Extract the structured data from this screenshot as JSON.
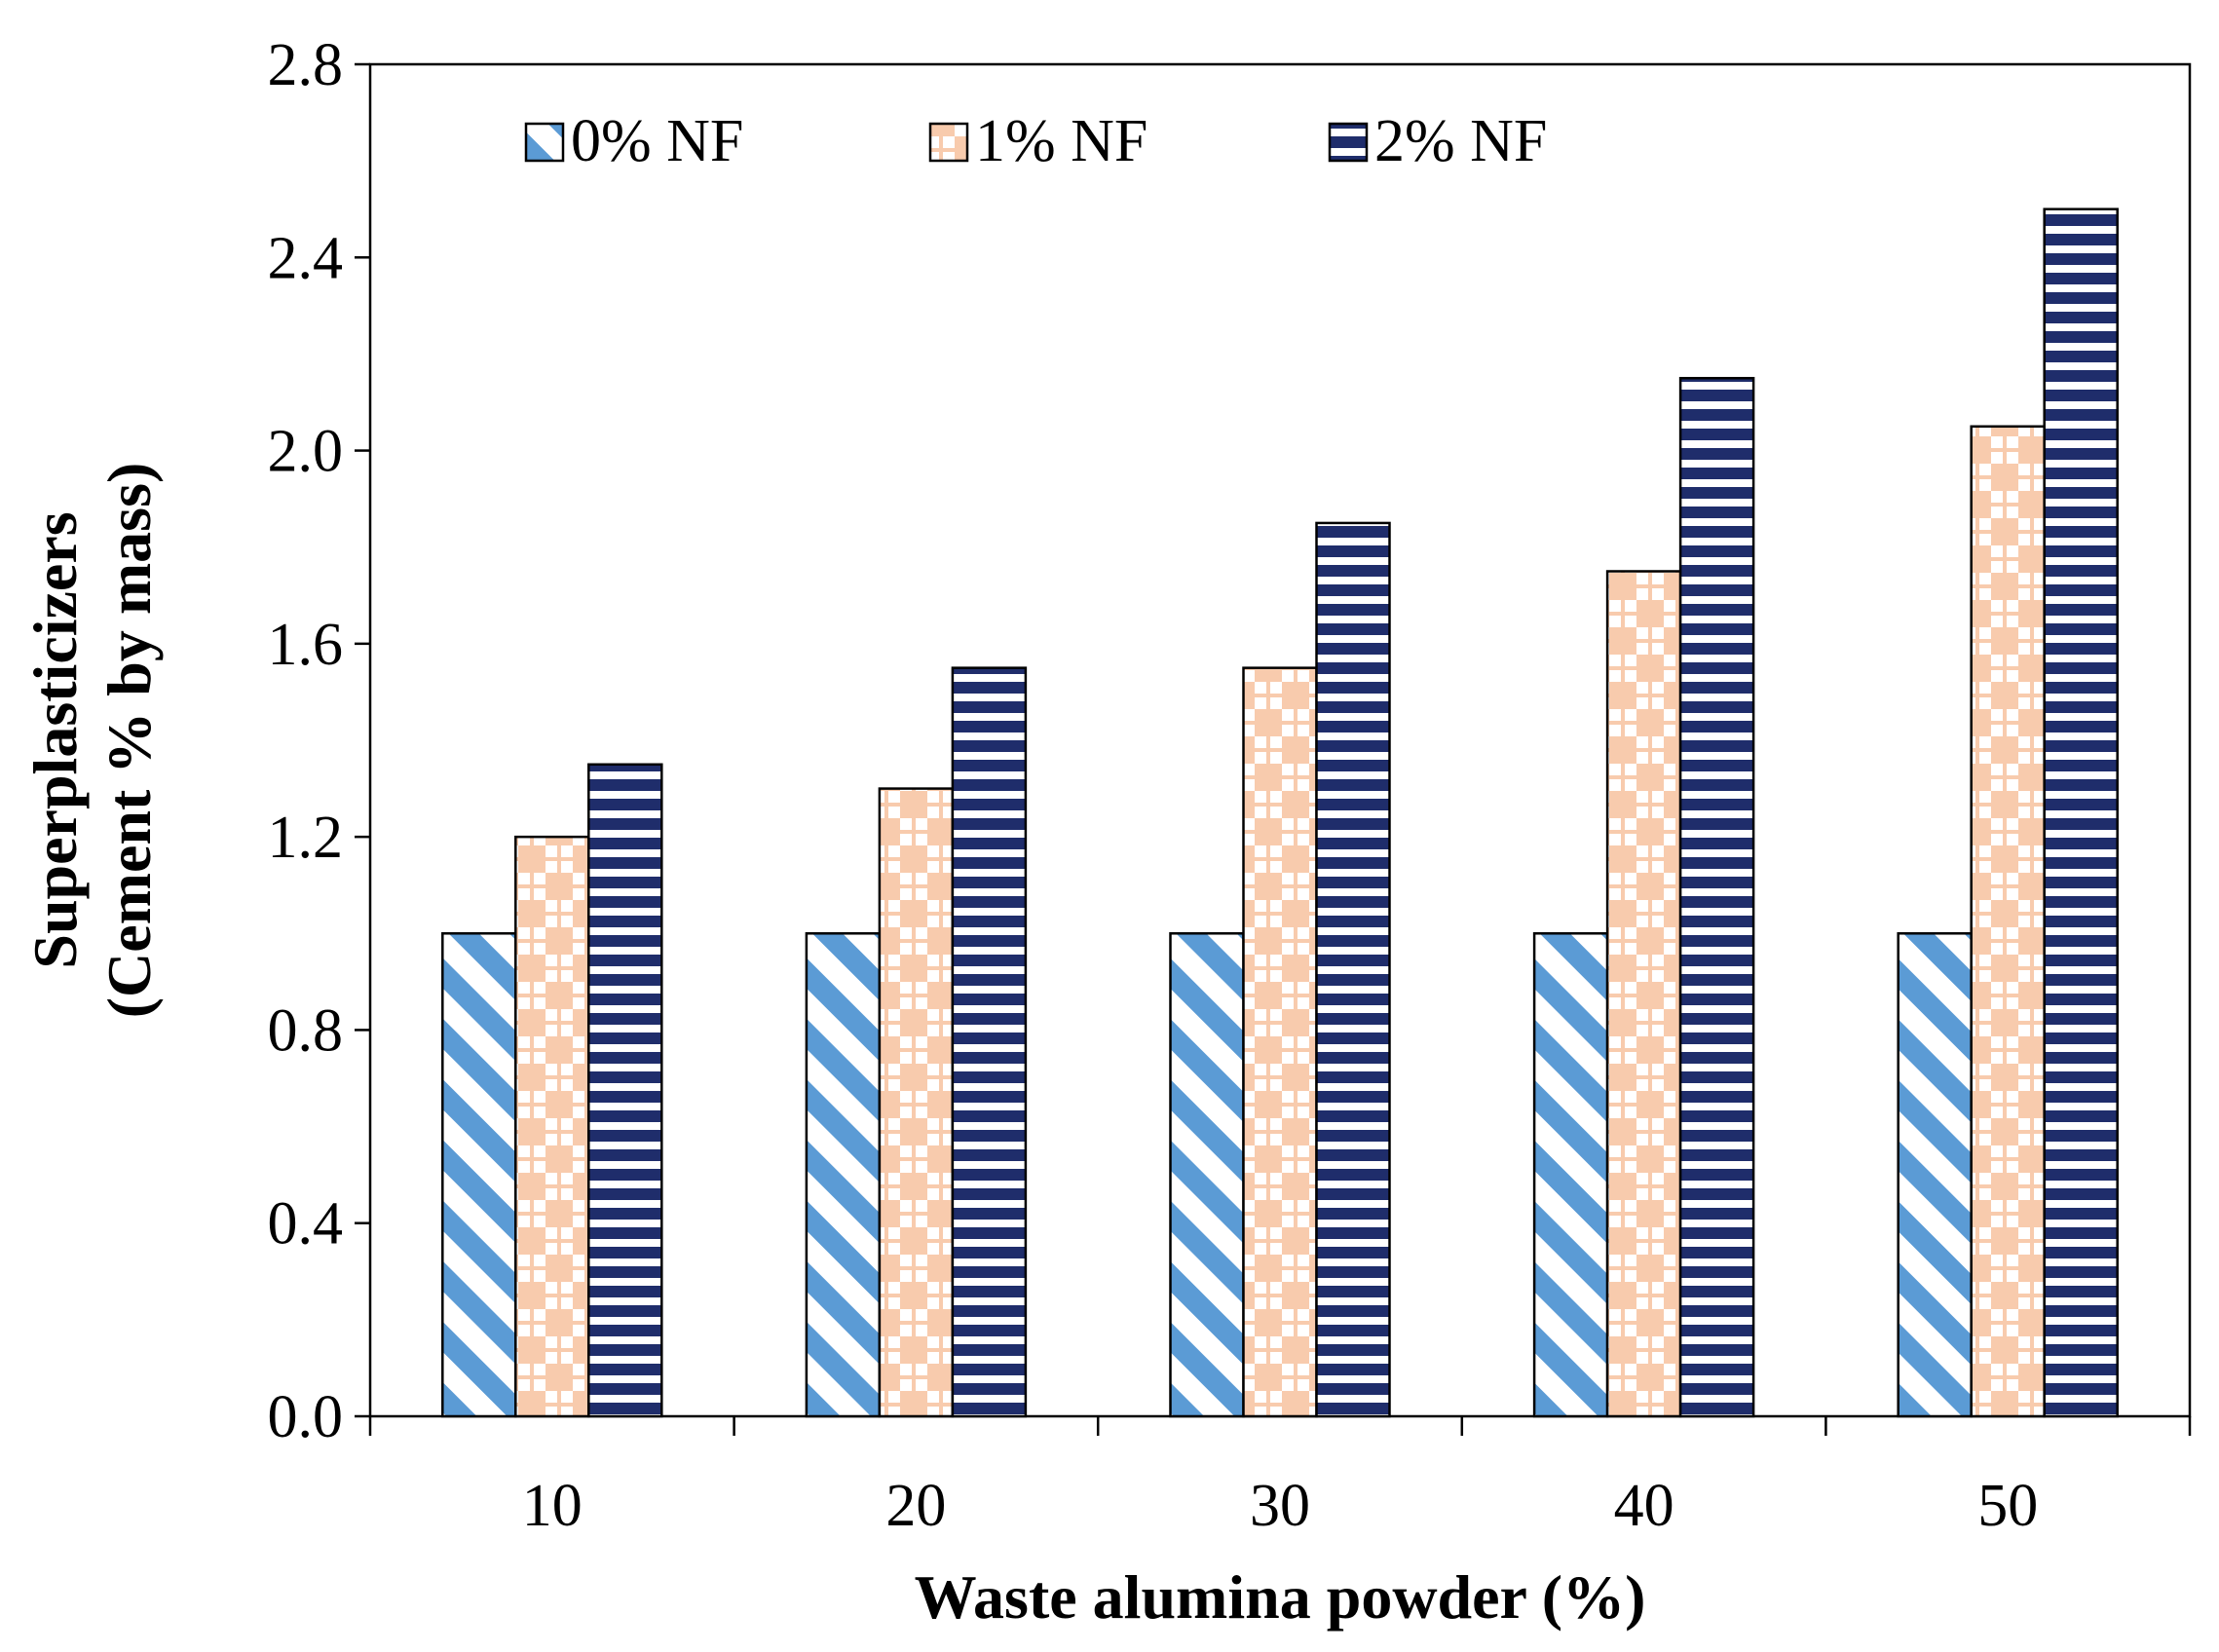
{
  "chart_data": {
    "type": "bar",
    "title": "",
    "xlabel": "Waste alumina powder (%)",
    "ylabel_line1": "Superplasticizers",
    "ylabel_line2": "(Cement % by mass)",
    "categories": [
      "10",
      "20",
      "30",
      "40",
      "50"
    ],
    "series": [
      {
        "name": "0% NF",
        "values": [
          1.0,
          1.0,
          1.0,
          1.0,
          1.0
        ],
        "color": "#5b9bd5",
        "pattern": "diagonal-stripes"
      },
      {
        "name": "1% NF",
        "values": [
          1.2,
          1.3,
          1.55,
          1.75,
          2.05
        ],
        "color": "#f8cbad",
        "pattern": "checker"
      },
      {
        "name": "2% NF",
        "values": [
          1.35,
          1.55,
          1.85,
          2.15,
          2.5
        ],
        "color": "#1f2d6b",
        "pattern": "horizontal-stripes"
      }
    ],
    "ylim": [
      0.0,
      2.8
    ],
    "yticks": [
      "0.0",
      "0.4",
      "0.8",
      "1.2",
      "1.6",
      "2.0",
      "2.4",
      "2.8"
    ],
    "legend_position": "top-left",
    "grid": false
  }
}
